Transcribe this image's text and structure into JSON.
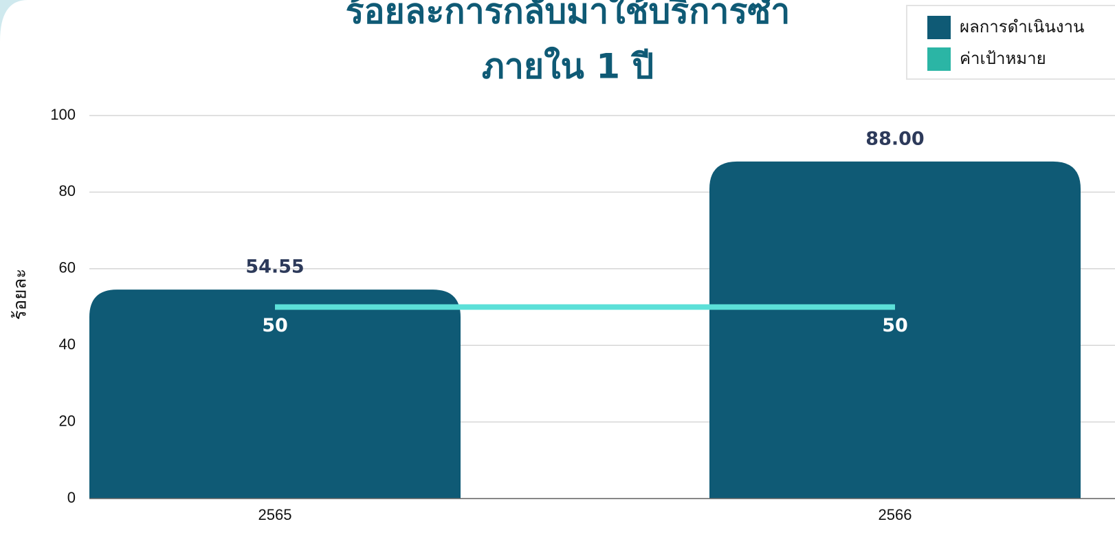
{
  "chart_data": {
    "type": "bar",
    "title": [
      "ร้อยละการกลับมาใช้บริการซ้ำ",
      "ภายใน 1 ปี"
    ],
    "ylabel": "ร้อยละ",
    "categories": [
      "2565",
      "2566"
    ],
    "series": [
      {
        "name": "ผลการดำเนินงาน",
        "type": "bar",
        "color": "#0f5a75",
        "values": [
          54.55,
          88.0
        ],
        "value_labels": [
          "54.55",
          "88.00"
        ]
      },
      {
        "name": "ค่าเป้าหมาย",
        "type": "line",
        "color": "#2bb5a5",
        "line_color": "#5ce0d8",
        "values": [
          50,
          50
        ]
      }
    ],
    "ylim": [
      0,
      100
    ],
    "yticks": [
      0,
      20,
      40,
      60,
      80,
      100
    ],
    "grid": true,
    "legend": "top-right"
  }
}
